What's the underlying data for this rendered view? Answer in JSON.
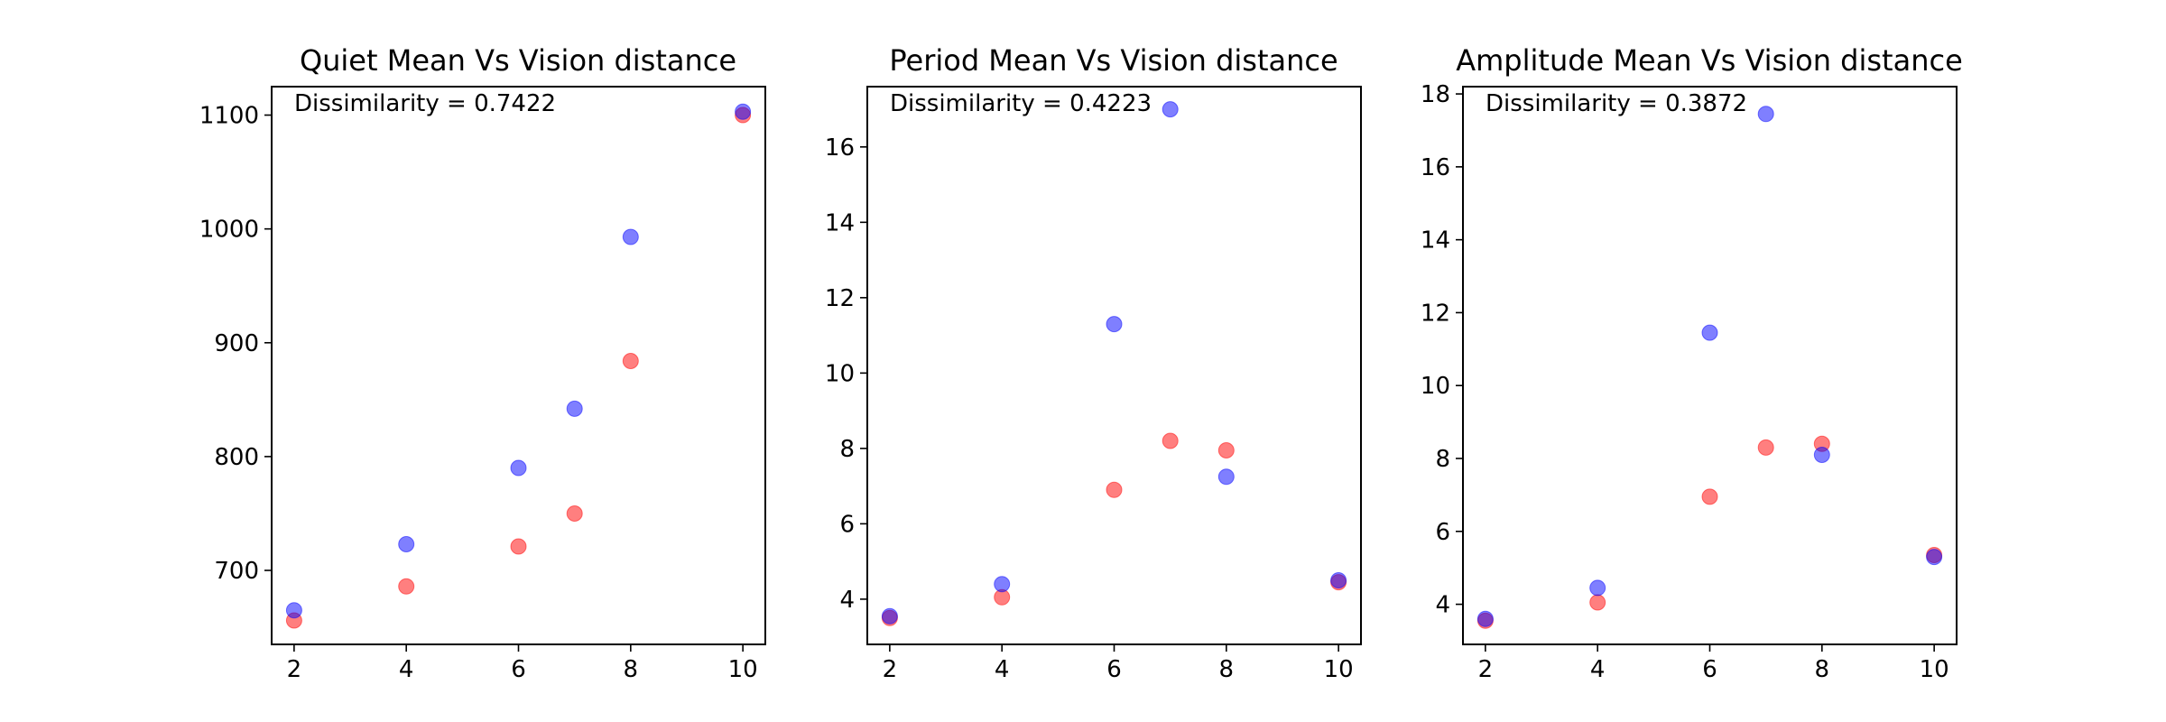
{
  "colors": {
    "series_a": "#ff0000",
    "series_b": "#0000ff",
    "axes": "#000000"
  },
  "chart_data": [
    {
      "type": "scatter",
      "title": "Quiet Mean Vs Vision distance",
      "annotation": "Dissimilarity = 0.7422",
      "xlabel": "",
      "ylabel": "",
      "xlim": [
        1.6,
        10.4
      ],
      "ylim": [
        635,
        1125
      ],
      "xticks": [
        2,
        4,
        6,
        8,
        10
      ],
      "yticks": [
        700,
        800,
        900,
        1000,
        1100
      ],
      "grid": false,
      "series": [
        {
          "color": "#ff0000",
          "x": [
            2,
            4,
            6,
            7,
            8,
            10
          ],
          "y": [
            656,
            686,
            721,
            750,
            884,
            1100
          ]
        },
        {
          "color": "#0000ff",
          "x": [
            2,
            4,
            6,
            7,
            8,
            10
          ],
          "y": [
            665,
            723,
            790,
            842,
            993,
            1103
          ]
        }
      ]
    },
    {
      "type": "scatter",
      "title": "Period Mean Vs Vision distance",
      "annotation": "Dissimilarity = 0.4223",
      "xlabel": "",
      "ylabel": "",
      "xlim": [
        1.6,
        10.4
      ],
      "ylim": [
        2.8,
        17.6
      ],
      "xticks": [
        2,
        4,
        6,
        8,
        10
      ],
      "yticks": [
        4,
        6,
        8,
        10,
        12,
        14,
        16
      ],
      "grid": false,
      "series": [
        {
          "color": "#ff0000",
          "x": [
            2,
            4,
            6,
            7,
            8,
            10
          ],
          "y": [
            3.5,
            4.05,
            6.9,
            8.2,
            7.95,
            4.45
          ]
        },
        {
          "color": "#0000ff",
          "x": [
            2,
            4,
            6,
            7,
            8,
            10
          ],
          "y": [
            3.55,
            4.4,
            11.3,
            17.0,
            7.25,
            4.5
          ]
        }
      ]
    },
    {
      "type": "scatter",
      "title": "Amplitude Mean Vs Vision distance",
      "annotation": "Dissimilarity = 0.3872",
      "xlabel": "",
      "ylabel": "",
      "xlim": [
        1.6,
        10.4
      ],
      "ylim": [
        2.9,
        18.2
      ],
      "xticks": [
        2,
        4,
        6,
        8,
        10
      ],
      "yticks": [
        4,
        6,
        8,
        10,
        12,
        14,
        16,
        18
      ],
      "grid": false,
      "series": [
        {
          "color": "#ff0000",
          "x": [
            2,
            4,
            6,
            7,
            8,
            10
          ],
          "y": [
            3.55,
            4.05,
            6.95,
            8.3,
            8.4,
            5.35
          ]
        },
        {
          "color": "#0000ff",
          "x": [
            2,
            4,
            6,
            7,
            8,
            10
          ],
          "y": [
            3.6,
            4.45,
            11.45,
            17.45,
            8.1,
            5.3
          ]
        }
      ]
    }
  ]
}
